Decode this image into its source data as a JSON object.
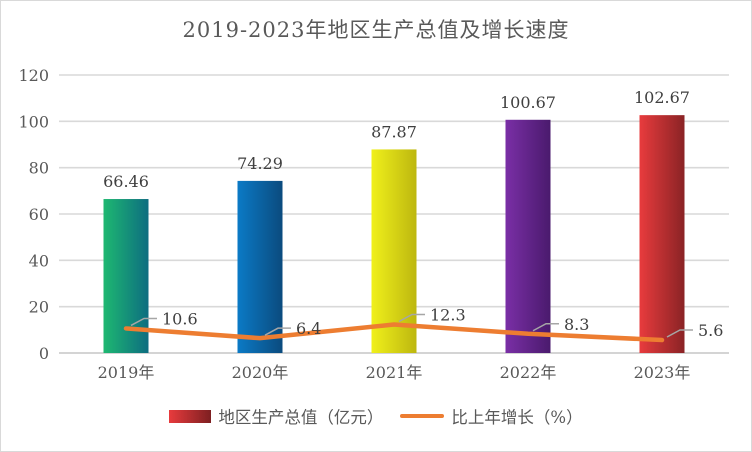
{
  "chart_data": {
    "type": "combo (bar + line)",
    "title": "2019-2023年地区生产总值及增长速度",
    "categories": [
      "2019年",
      "2020年",
      "2021年",
      "2022年",
      "2023年"
    ],
    "series": [
      {
        "name": "地区生产总值（亿元）",
        "type": "bar",
        "values": [
          66.46,
          74.29,
          87.87,
          100.67,
          102.67
        ],
        "data_labels": [
          "66.46",
          "74.29",
          "87.87",
          "100.67",
          "102.67"
        ],
        "bar_gradients": [
          [
            "#1eb871",
            "#0d6d80"
          ],
          [
            "#0b7ac6",
            "#0b4b7e"
          ],
          [
            "#f0f01b",
            "#bdb70f"
          ],
          [
            "#7a2fa6",
            "#4a1a6d"
          ],
          [
            "#e83b3d",
            "#8a2325"
          ]
        ]
      },
      {
        "name": "比上年增长（%）",
        "type": "line",
        "values": [
          10.6,
          6.4,
          12.3,
          8.3,
          5.6
        ],
        "data_labels": [
          "10.6",
          "6.4",
          "12.3",
          "8.3",
          "5.6"
        ],
        "color": "#ed7d31"
      }
    ],
    "y_axis": {
      "min": 0,
      "max": 120,
      "tick_step": 20,
      "tick_labels": [
        "0",
        "20",
        "40",
        "60",
        "80",
        "100",
        "120"
      ],
      "gridlines": true
    },
    "legend": {
      "position": "bottom"
    },
    "colors": {
      "axis_text": "#595959",
      "data_label_text": "#3f3f3f",
      "gridline": "#d9d9d9",
      "axis_line": "#c6c6c6",
      "leader_line": "#a6a6a6",
      "line_series": "#ed7d31",
      "background": "#ffffff",
      "border": "#d9d9d9"
    }
  }
}
